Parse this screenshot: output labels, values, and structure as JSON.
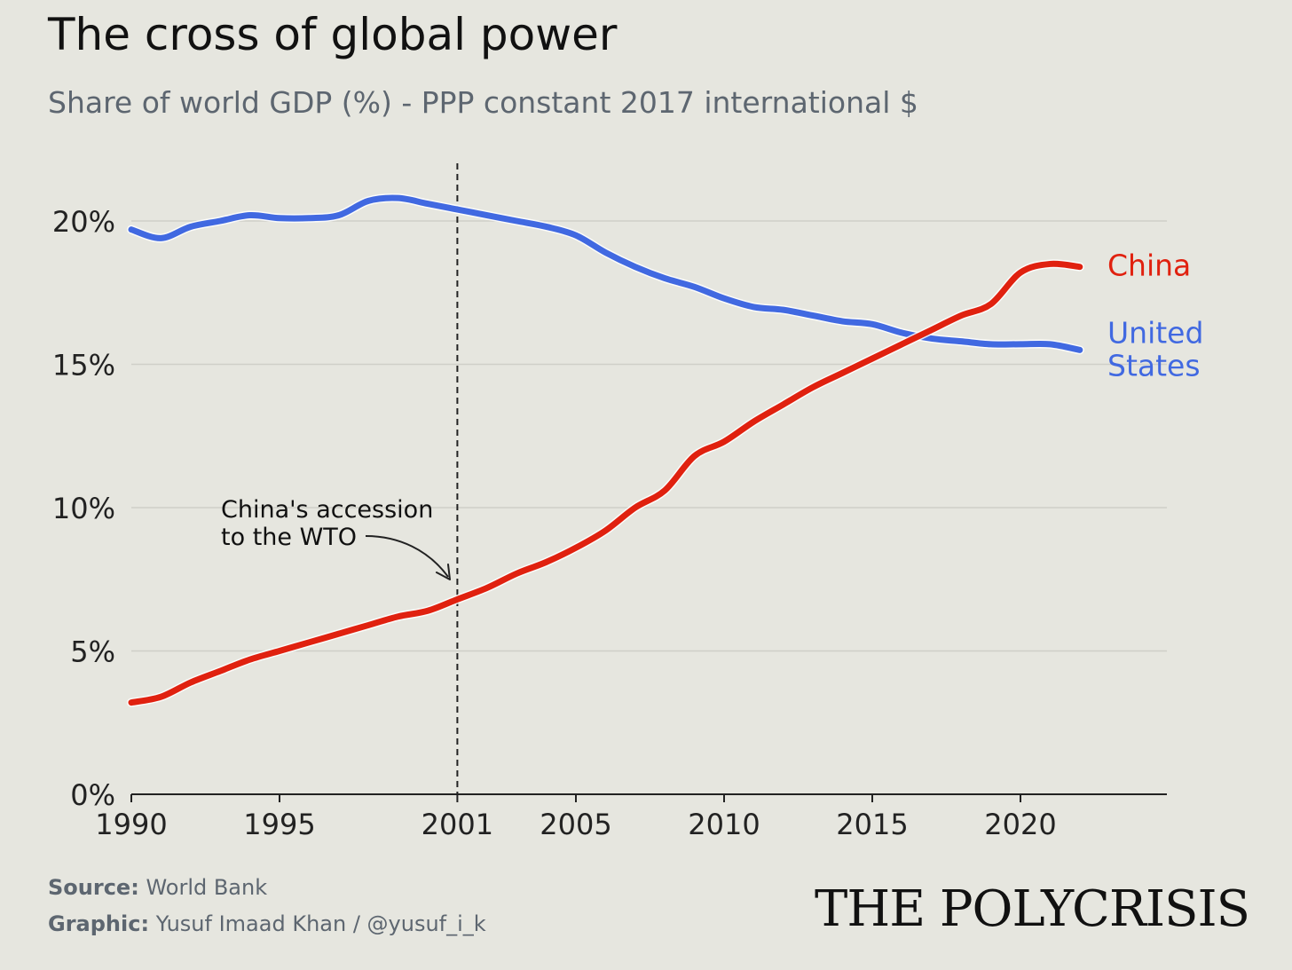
{
  "chart_data": {
    "type": "line",
    "title": "The cross of global power",
    "subtitle": "Share of world GDP (%) - PPP constant 2017 international $",
    "x_ticks": [
      1990,
      1995,
      2001,
      2005,
      2010,
      2015,
      2020
    ],
    "y_ticks": [
      "0%",
      "5%",
      "10%",
      "15%",
      "20%"
    ],
    "y_tick_values": [
      0,
      5,
      10,
      15,
      20
    ],
    "xlim": [
      1990,
      2025
    ],
    "ylim": [
      0,
      22
    ],
    "grid": "horizontal",
    "annotation": {
      "x": 2001,
      "lines": [
        "China's accession",
        "to the WTO"
      ]
    },
    "series": [
      {
        "name": "China",
        "color": "#e0210f",
        "label_lines": [
          "China"
        ],
        "x": [
          1990,
          1991,
          1992,
          1993,
          1994,
          1995,
          1996,
          1997,
          1998,
          1999,
          2000,
          2001,
          2002,
          2003,
          2004,
          2005,
          2006,
          2007,
          2008,
          2009,
          2010,
          2011,
          2012,
          2013,
          2014,
          2015,
          2016,
          2017,
          2018,
          2019,
          2020,
          2021,
          2022
        ],
        "values": [
          3.2,
          3.4,
          3.9,
          4.3,
          4.7,
          5.0,
          5.3,
          5.6,
          5.9,
          6.2,
          6.4,
          6.8,
          7.2,
          7.7,
          8.1,
          8.6,
          9.2,
          10.0,
          10.6,
          11.8,
          12.3,
          13.0,
          13.6,
          14.2,
          14.7,
          15.2,
          15.7,
          16.2,
          16.7,
          17.1,
          18.2,
          18.5,
          18.4
        ]
      },
      {
        "name": "United States",
        "color": "#4169e1",
        "label_lines": [
          "United",
          "States"
        ],
        "x": [
          1990,
          1991,
          1992,
          1993,
          1994,
          1995,
          1996,
          1997,
          1998,
          1999,
          2000,
          2001,
          2002,
          2003,
          2004,
          2005,
          2006,
          2007,
          2008,
          2009,
          2010,
          2011,
          2012,
          2013,
          2014,
          2015,
          2016,
          2017,
          2018,
          2019,
          2020,
          2021,
          2022
        ],
        "values": [
          19.7,
          19.4,
          19.8,
          20.0,
          20.2,
          20.1,
          20.1,
          20.2,
          20.7,
          20.8,
          20.6,
          20.4,
          20.2,
          20.0,
          19.8,
          19.5,
          18.9,
          18.4,
          18.0,
          17.7,
          17.3,
          17.0,
          16.9,
          16.7,
          16.5,
          16.4,
          16.1,
          15.9,
          15.8,
          15.7,
          15.7,
          15.7,
          15.5
        ]
      }
    ]
  },
  "footer": {
    "source_label": "Source:",
    "source_value": "World Bank",
    "graphic_label": "Graphic:",
    "graphic_value": "Yusuf Imaad Khan / @yusuf_i_k"
  },
  "brand": "THE POLYCRISIS"
}
